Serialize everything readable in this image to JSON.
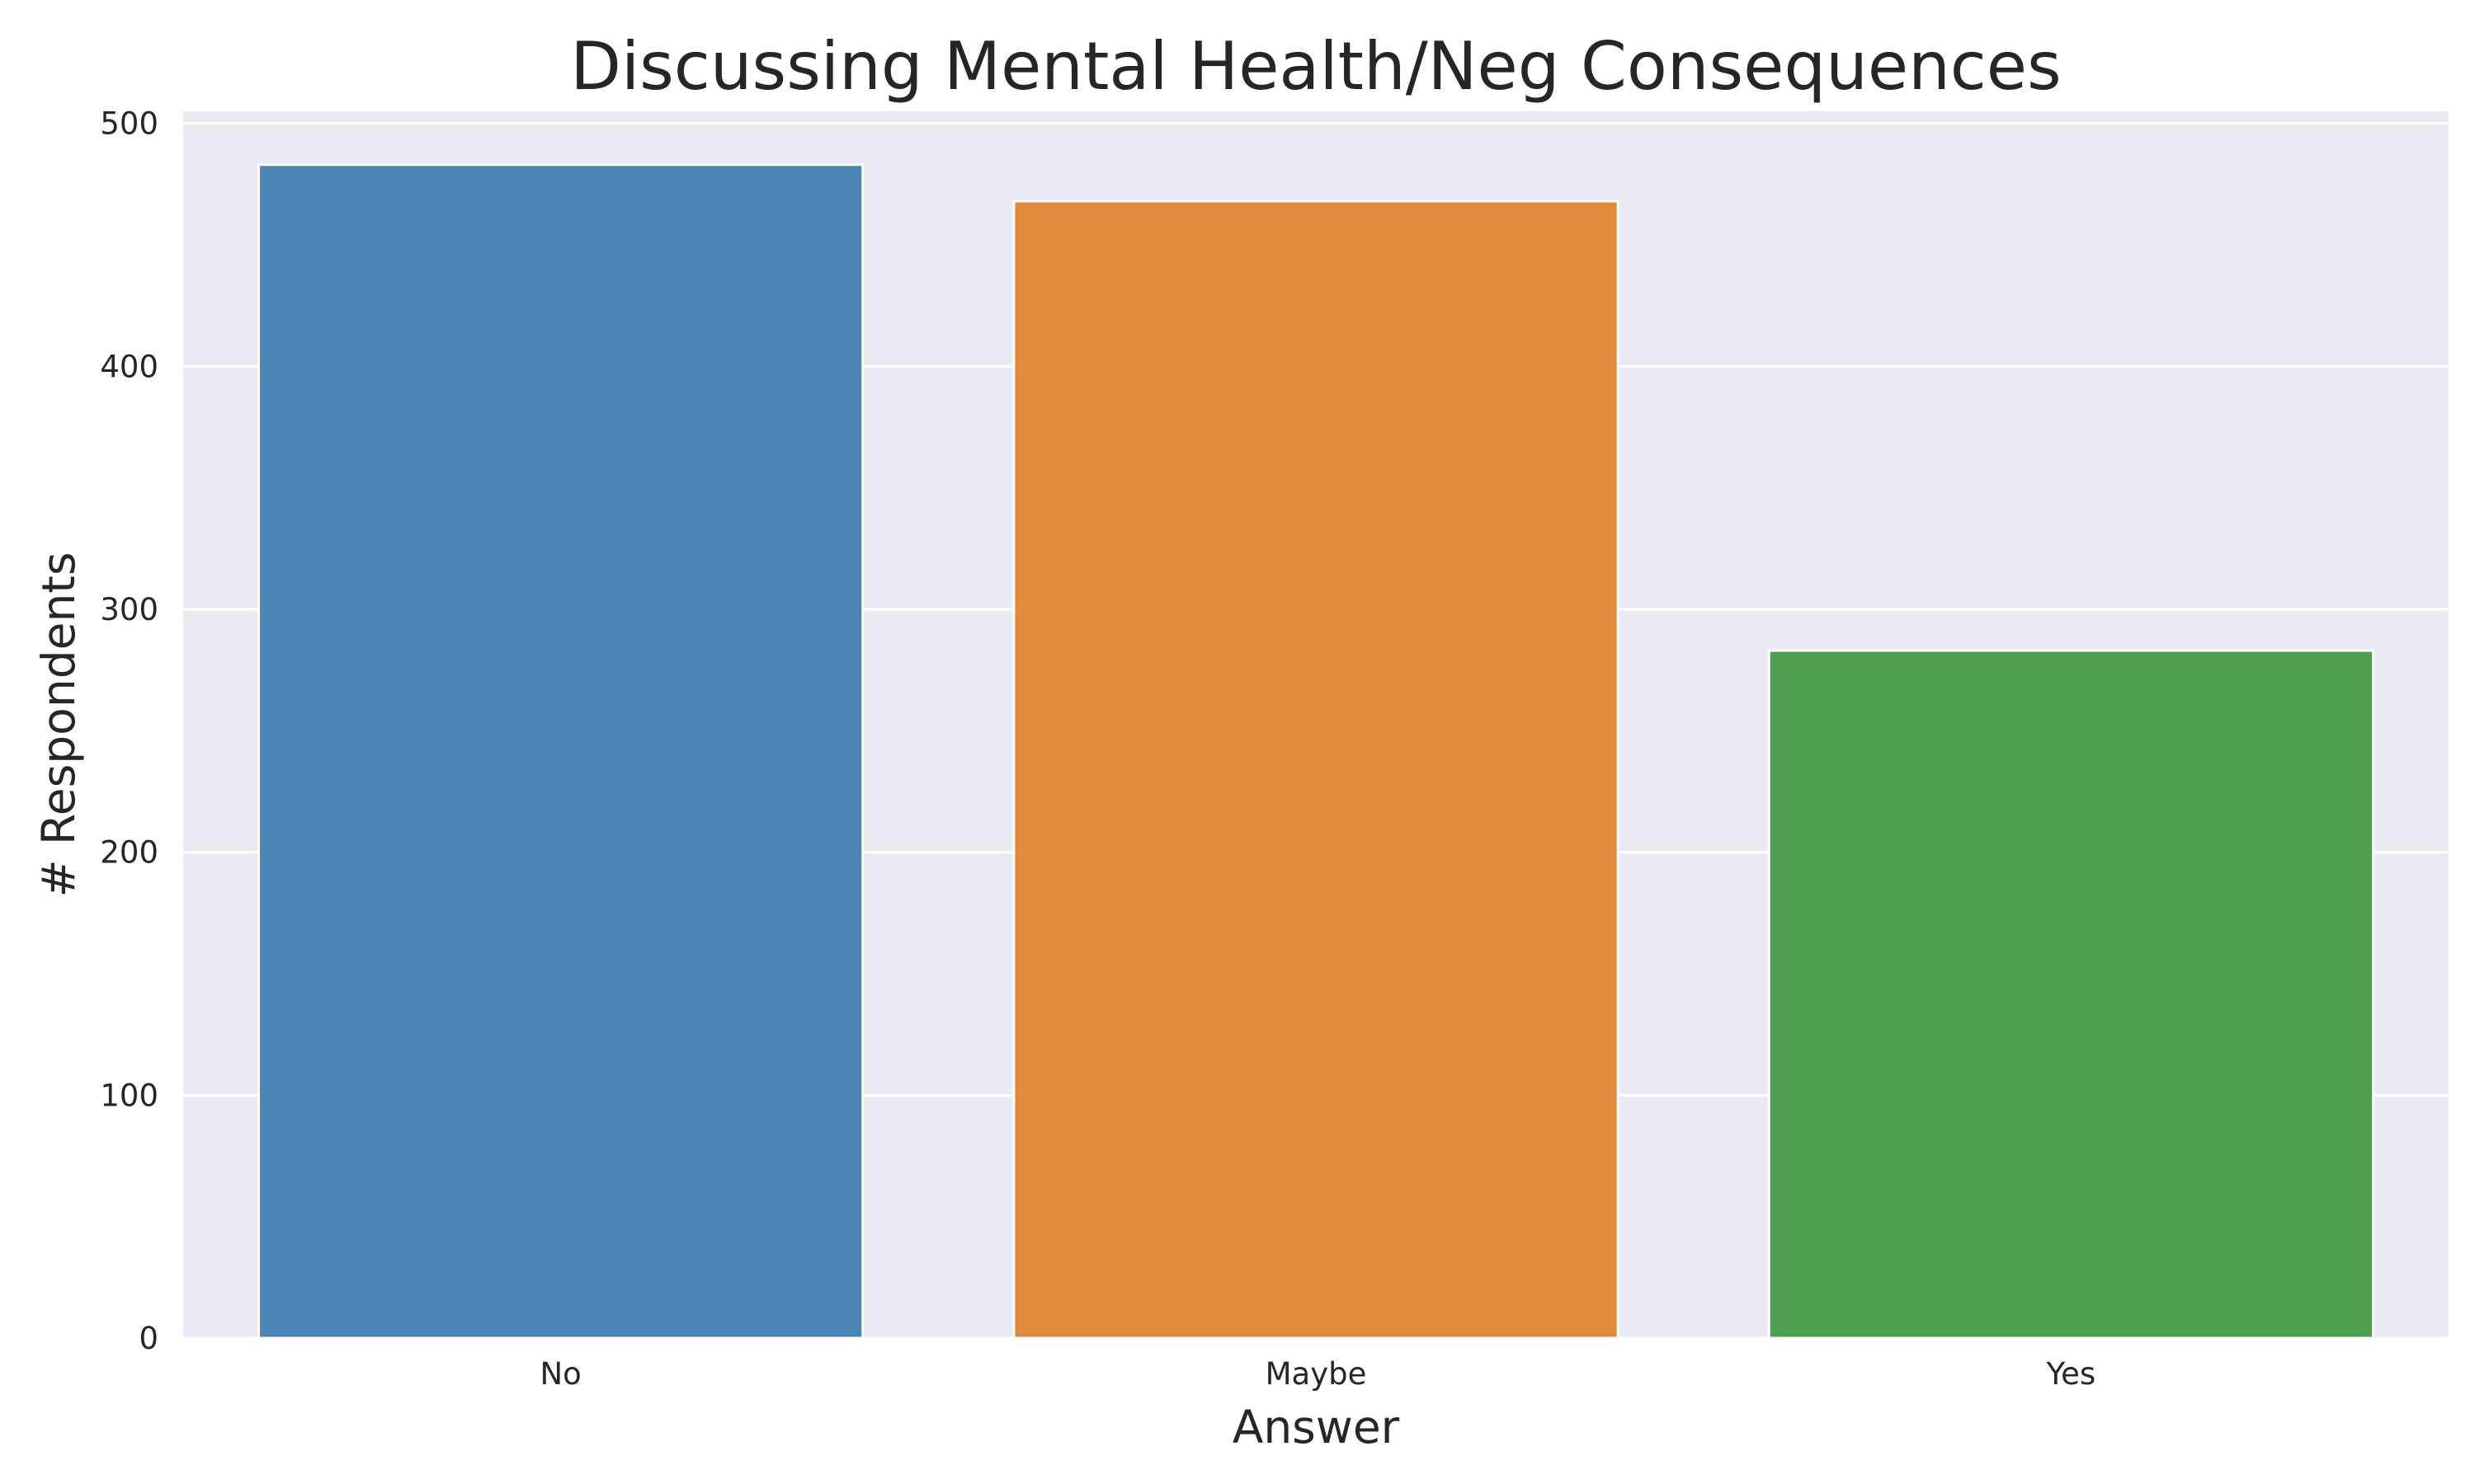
{
  "chart_data": {
    "type": "bar",
    "title": "Discussing Mental Health/Neg Consequences",
    "xlabel": "Answer",
    "ylabel": "# Respondents",
    "categories": [
      "No",
      "Maybe",
      "Yes"
    ],
    "values": [
      483,
      468,
      283
    ],
    "colors": [
      "#4c84b3",
      "#e08a3e",
      "#4f9e50"
    ],
    "ylim": [
      0,
      505
    ],
    "yticks": [
      0,
      100,
      200,
      300,
      400,
      500
    ],
    "grid": true,
    "background": "#eaeaf2",
    "legend": "none"
  }
}
